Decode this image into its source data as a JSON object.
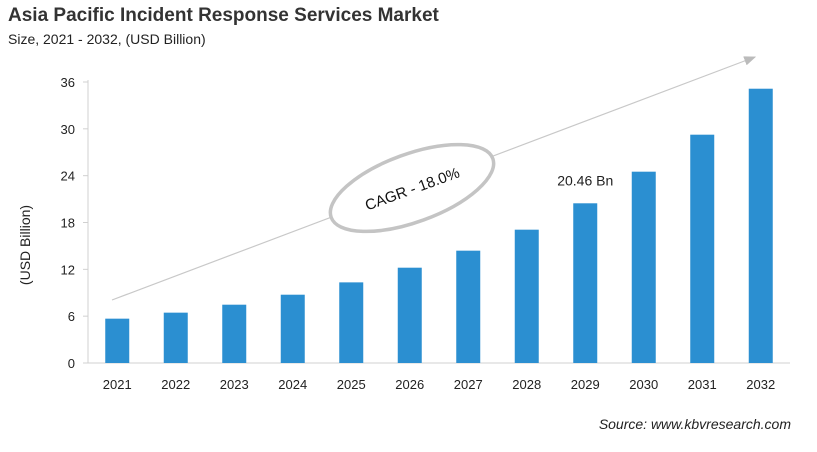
{
  "chart_data": {
    "type": "bar",
    "title": "Asia Pacific Incident Response Services Market",
    "subtitle": "Size, 2021 - 2032, (USD Billion)",
    "ylabel": "(USD Billion)",
    "xlabel": "",
    "categories": [
      "2021",
      "2022",
      "2023",
      "2024",
      "2025",
      "2026",
      "2027",
      "2028",
      "2029",
      "2030",
      "2031",
      "2032"
    ],
    "values": [
      5.68,
      6.45,
      7.47,
      8.75,
      10.33,
      12.21,
      14.39,
      17.08,
      20.46,
      24.51,
      29.25,
      35.14
    ],
    "ylim": [
      0,
      36
    ],
    "yticks": [
      0,
      6,
      12,
      18,
      24,
      30,
      36
    ],
    "grid": false,
    "bar_color": "#2b8fd1",
    "annotations": {
      "data_label": {
        "category": "2029",
        "text": "20.46 Bn"
      },
      "cagr": "CAGR - 18.0%"
    },
    "source": "Source: www.kbvresearch.com"
  }
}
